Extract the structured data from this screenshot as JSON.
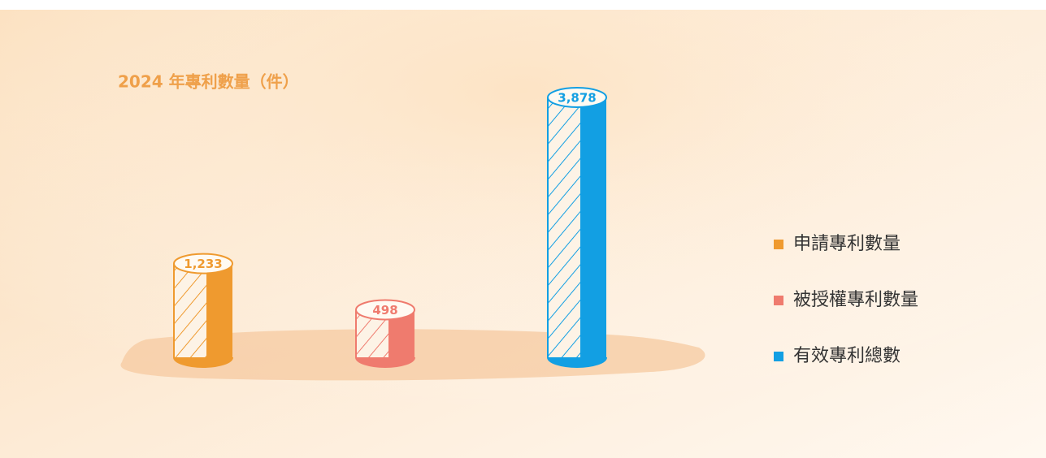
{
  "chart_data": {
    "type": "cylinder-bar",
    "title": "2024 年專利數量（件）",
    "categories": [
      "申請專利數量",
      "被授權專利數量",
      "有效專利總數"
    ],
    "values": [
      1233,
      498,
      3878
    ],
    "value_labels": [
      "1,233",
      "498",
      "3,878"
    ],
    "colors": [
      "#ef9a2f",
      "#ef7b6e",
      "#129fe3"
    ],
    "legend": "right"
  }
}
